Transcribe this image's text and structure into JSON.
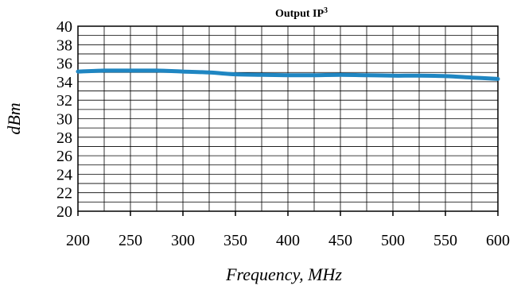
{
  "chart_data": {
    "type": "line",
    "title_main": "Output IP",
    "title_sup": "3",
    "xlabel": "Frequency, MHz",
    "ylabel": "dBm",
    "xlim": [
      200,
      600
    ],
    "ylim": [
      20,
      40
    ],
    "x_ticks": [
      200,
      250,
      300,
      350,
      400,
      450,
      500,
      550,
      600
    ],
    "x_minor_step": 25,
    "y_ticks": [
      20,
      22,
      24,
      26,
      28,
      30,
      32,
      34,
      36,
      38,
      40
    ],
    "y_minor_step": 1,
    "grid": true,
    "series": [
      {
        "color": "#1f86c2",
        "x": [
          200,
          225,
          250,
          275,
          300,
          325,
          350,
          375,
          400,
          425,
          450,
          475,
          500,
          525,
          550,
          575,
          600
        ],
        "y": [
          35.1,
          35.2,
          35.2,
          35.2,
          35.1,
          35.0,
          34.8,
          34.75,
          34.7,
          34.7,
          34.75,
          34.7,
          34.65,
          34.65,
          34.6,
          34.45,
          34.3
        ]
      }
    ]
  }
}
